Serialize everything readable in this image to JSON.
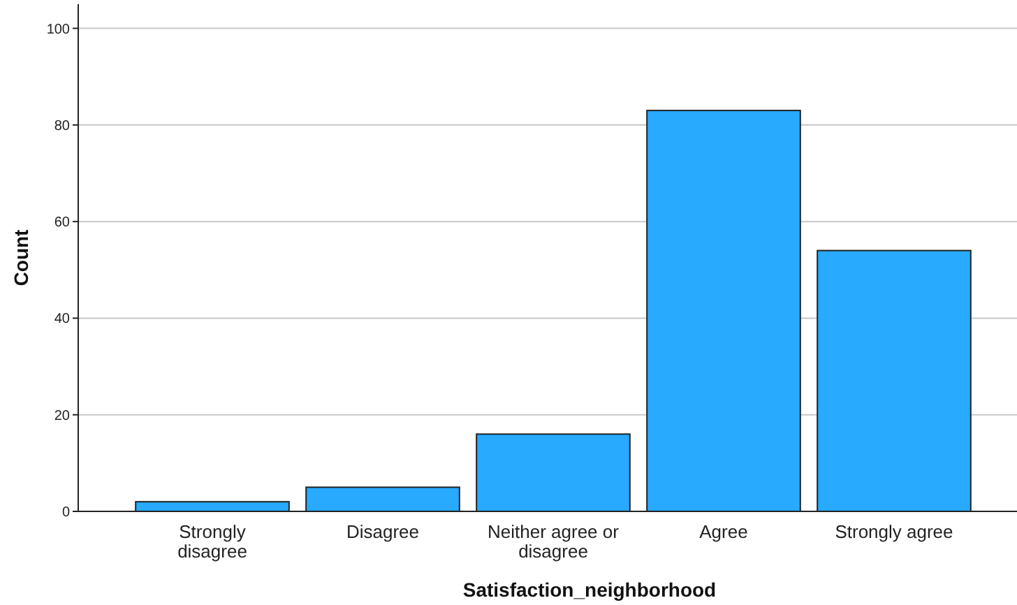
{
  "chart_data": {
    "type": "bar",
    "xlabel": "Satisfaction_neighborhood",
    "ylabel": "Count",
    "categories": [
      "Strongly disagree",
      "Disagree",
      "Neither agree or disagree",
      "Agree",
      "Strongly agree"
    ],
    "values": [
      2,
      5,
      16,
      83,
      54
    ],
    "color": "#27aaff",
    "ylim": [
      0,
      105
    ],
    "yticks": [
      0,
      20,
      40,
      60,
      80,
      100
    ],
    "grid": "y"
  }
}
